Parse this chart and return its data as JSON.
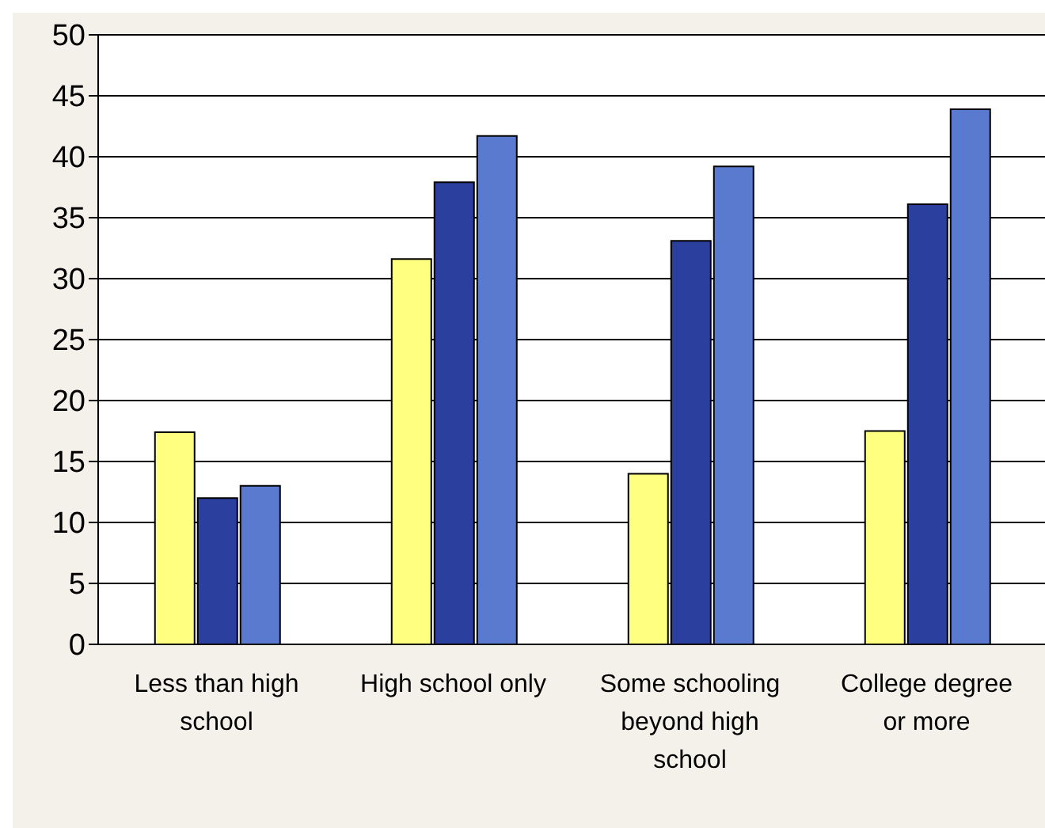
{
  "chart_data": {
    "type": "bar",
    "categories": [
      "Less than high school",
      "High school only",
      "Some schooling beyond high school",
      "College degree or more"
    ],
    "series": [
      {
        "color": "#ffff80",
        "values": [
          17.4,
          31.6,
          14,
          17.5
        ]
      },
      {
        "color": "#2b3f9e",
        "values": [
          12,
          37.9,
          33.1,
          36.1
        ]
      },
      {
        "color": "#5a7ad0",
        "values": [
          13,
          41.7,
          39.2,
          43.9
        ]
      }
    ],
    "ylim": [
      0,
      50
    ],
    "yticks": [
      0,
      5,
      10,
      15,
      20,
      25,
      30,
      35,
      40,
      45,
      50
    ],
    "grid": "y",
    "legend": false
  }
}
